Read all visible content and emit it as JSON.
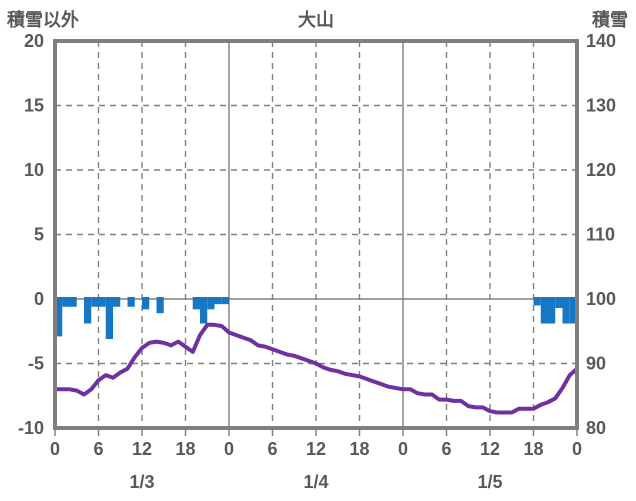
{
  "header": {
    "left_axis_title": "積雪以外",
    "chart_title": "大山",
    "right_axis_title": "積雪"
  },
  "colors": {
    "bar_blue": "#1777C4",
    "line_purple": "#7030A0",
    "grid_gray": "#808080",
    "border_gray": "#7F7F7F",
    "label_gray": "#595959",
    "background": "#FFFFFF"
  },
  "chart_data": {
    "type": "composite",
    "title": "大山",
    "x_unit": "hour",
    "x_range_hours": [
      0,
      72
    ],
    "grid": "dashed-6h, solid day boundaries",
    "legend_position": "none",
    "left_axis": {
      "title": "積雪以外",
      "range": [
        -10,
        20
      ],
      "ticks": [
        "20",
        "15",
        "10",
        "5",
        "0",
        "-5",
        "-10"
      ],
      "tick_values": [
        20,
        15,
        10,
        5,
        0,
        -5,
        -10
      ]
    },
    "right_axis": {
      "title": "積雪",
      "range": [
        80,
        140
      ],
      "ticks": [
        "140",
        "130",
        "120",
        "110",
        "100",
        "90",
        "80"
      ],
      "tick_values": [
        140,
        130,
        120,
        110,
        100,
        90,
        80
      ]
    },
    "x_ticks": {
      "hours": [
        0,
        6,
        12,
        18,
        24,
        30,
        36,
        42,
        48,
        54,
        60,
        66,
        72
      ],
      "labels": [
        "0",
        "6",
        "12",
        "18",
        "0",
        "6",
        "12",
        "18",
        "0",
        "6",
        "12",
        "18",
        "0"
      ]
    },
    "date_labels": [
      {
        "label": "1/3",
        "center_hour": 12
      },
      {
        "label": "1/4",
        "center_hour": 36
      },
      {
        "label": "1/5",
        "center_hour": 60
      }
    ],
    "series": [
      {
        "name": "snowfall-bars",
        "type": "bar",
        "axis": "left",
        "note": "hourly values drawn downward from the 0 line, in left-axis units",
        "hourly_values": [
          2.9,
          0.6,
          0.6,
          0,
          1.9,
          0.6,
          0.6,
          3.1,
          0.6,
          0,
          0.6,
          0,
          0.8,
          0,
          1.1,
          0,
          0,
          0,
          0,
          0.8,
          1.9,
          0.8,
          0.4,
          0.4,
          0,
          0,
          0,
          0,
          0,
          0,
          0,
          0,
          0,
          0,
          0,
          0,
          0,
          0,
          0,
          0,
          0,
          0,
          0,
          0,
          0,
          0,
          0,
          0,
          0,
          0,
          0,
          0,
          0,
          0,
          0,
          0,
          0,
          0,
          0,
          0,
          0,
          0,
          0,
          0,
          0,
          0,
          0.5,
          1.9,
          1.9,
          0.7,
          1.9,
          1.9
        ]
      },
      {
        "name": "snow-depth-line",
        "type": "line",
        "axis": "right",
        "note": "hourly snow depth read on right axis (cm)",
        "hourly_values": [
          86,
          86,
          86,
          85.8,
          85.2,
          86,
          87.4,
          88.2,
          87.8,
          88.6,
          89.2,
          91,
          92.4,
          93.2,
          93.4,
          93.2,
          92.8,
          93.4,
          92.6,
          91.8,
          94.4,
          96,
          96,
          95.8,
          94.8,
          94.4,
          94,
          93.6,
          92.8,
          92.6,
          92.2,
          91.8,
          91.4,
          91.2,
          90.8,
          90.4,
          90,
          89.4,
          89,
          88.8,
          88.4,
          88.2,
          88,
          87.6,
          87.2,
          86.8,
          86.4,
          86.2,
          86,
          86,
          85.4,
          85.2,
          85.2,
          84.4,
          84.4,
          84.2,
          84.2,
          83.4,
          83.2,
          83.2,
          82.6,
          82.4,
          82.4,
          82.4,
          83,
          83,
          83,
          83.6,
          84,
          84.6,
          86.2,
          88.2,
          89.2
        ]
      }
    ]
  }
}
